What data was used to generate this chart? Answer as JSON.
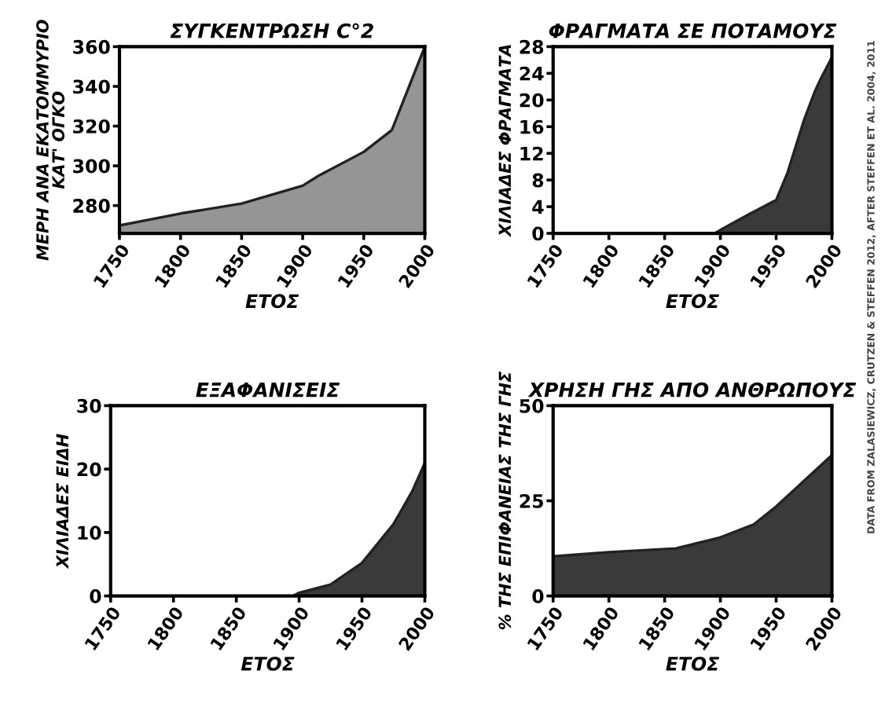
{
  "chart_data": [
    {
      "type": "area",
      "title": "ΣΥΓΚΕΝΤΡΩΣΗ C°2",
      "xlabel": "ΕΤΟΣ",
      "ylabel": "ΜΕΡΗ ΑΝΑ ΕΚΑΤΟΜΜΥΡΙΟ\nΚΑΤ' ΟΓΚΟ",
      "x": [
        1750,
        1800,
        1850,
        1900,
        1913,
        1950,
        1973,
        2000
      ],
      "series": [
        {
          "color": "#959595",
          "values": [
            270,
            276,
            281,
            290,
            295,
            307,
            318,
            360
          ]
        }
      ],
      "xlim": [
        1750,
        2000
      ],
      "xticks": [
        1750,
        1800,
        1850,
        1900,
        1950,
        2000
      ],
      "ylim": [
        266,
        360
      ],
      "yticks": [
        280,
        300,
        320,
        340,
        360
      ],
      "grid": false,
      "legend": false
    },
    {
      "type": "area",
      "title": "ΦΡΑΓΜΑΤΑ ΣΕ ΠΟΤΑΜΟΥΣ",
      "xlabel": "ΕΤΟΣ",
      "ylabel": "ΧΙΛΙΑΔΕΣ ΦΡΑΓΜΑΤΑ",
      "x": [
        1750,
        1895,
        1900,
        1925,
        1950,
        1960,
        1975,
        1985,
        1990,
        2000
      ],
      "series": [
        {
          "color": "#3a3a3a",
          "values": [
            0,
            0,
            0.5,
            2.8,
            5,
            9,
            17,
            21.4,
            23.2,
            26.4
          ]
        }
      ],
      "xlim": [
        1750,
        2000
      ],
      "xticks": [
        1750,
        1800,
        1850,
        1900,
        1950,
        2000
      ],
      "ylim": [
        0,
        28
      ],
      "yticks": [
        0,
        4,
        8,
        12,
        16,
        20,
        24,
        28
      ],
      "grid": false,
      "legend": false
    },
    {
      "type": "area",
      "title": "ΕΞΑΦΑΝΙΣΕΙΣ",
      "xlabel": "ΕΤΟΣ",
      "ylabel": "ΧΙΛΙΑΔΕΣ ΕΙΔΗ",
      "x": [
        1750,
        1895,
        1900,
        1925,
        1950,
        1975,
        1990,
        2000
      ],
      "series": [
        {
          "color": "#3a3a3a",
          "values": [
            0,
            0,
            0.5,
            1.8,
            5.2,
            11.3,
            16.5,
            21
          ]
        }
      ],
      "xlim": [
        1750,
        2000
      ],
      "xticks": [
        1750,
        1800,
        1850,
        1900,
        1950,
        2000
      ],
      "ylim": [
        0,
        30
      ],
      "yticks": [
        0,
        10,
        20,
        30
      ],
      "grid": false,
      "legend": false
    },
    {
      "type": "area",
      "title": "ΧΡΗΣΗ ΓΗΣ ΑΠΟ ΑΝΘΡΩΠΟΥΣ",
      "xlabel": "ΕΤΟΣ",
      "ylabel": "% ΤΗΣ ΕΠΙΦΑΝΕΙΑΣ ΤΗΣ ΓΗΣ",
      "x": [
        1750,
        1800,
        1860,
        1900,
        1930,
        1950,
        2000
      ],
      "series": [
        {
          "color": "#3a3a3a",
          "values": [
            10.4,
            11.5,
            12.5,
            15.4,
            18.8,
            23.5,
            37
          ]
        }
      ],
      "xlim": [
        1750,
        2000
      ],
      "xticks": [
        1750,
        1800,
        1850,
        1900,
        1950,
        2000
      ],
      "ylim": [
        0,
        50
      ],
      "yticks": [
        0,
        25,
        50
      ],
      "grid": false,
      "legend": false,
      "annotations": [
        "DATA FROM ZALASIEWICZ, CRUTZEN & STEFFEN 2012, AFTER STEFFEN ET AL. 2004, 2011"
      ]
    }
  ]
}
